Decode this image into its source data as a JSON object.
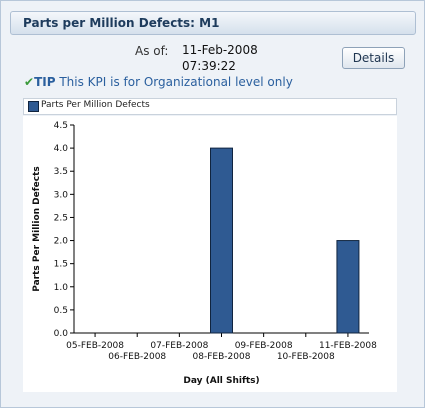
{
  "panel": {
    "title": "Parts per Million Defects: M1",
    "as_of_label": "As of:",
    "as_of_date": "11-Feb-2008",
    "as_of_time": "07:39:22",
    "details_label": "Details",
    "tip_label": "TIP",
    "tip_text": "This KPI is for Organizational level only"
  },
  "colors": {
    "bar": "#2f5a92",
    "bar_border": "#10243f"
  },
  "chart_data": {
    "type": "bar",
    "title": "",
    "xlabel": "Day (All Shifts)",
    "ylabel": "Parts Per Million Defects",
    "categories": [
      "05-FEB-2008",
      "06-FEB-2008",
      "07-FEB-2008",
      "08-FEB-2008",
      "09-FEB-2008",
      "10-FEB-2008",
      "11-FEB-2008"
    ],
    "series": [
      {
        "name": "Parts Per Million Defects",
        "values": [
          0,
          0,
          0,
          4.0,
          0,
          0,
          2.0
        ]
      }
    ],
    "ylim": [
      0,
      4.5
    ],
    "yticks": [
      "0.0",
      "0.5",
      "1.0",
      "1.5",
      "2.0",
      "2.5",
      "3.0",
      "3.5",
      "4.0",
      "4.5"
    ],
    "grid": false,
    "legend": "top"
  }
}
